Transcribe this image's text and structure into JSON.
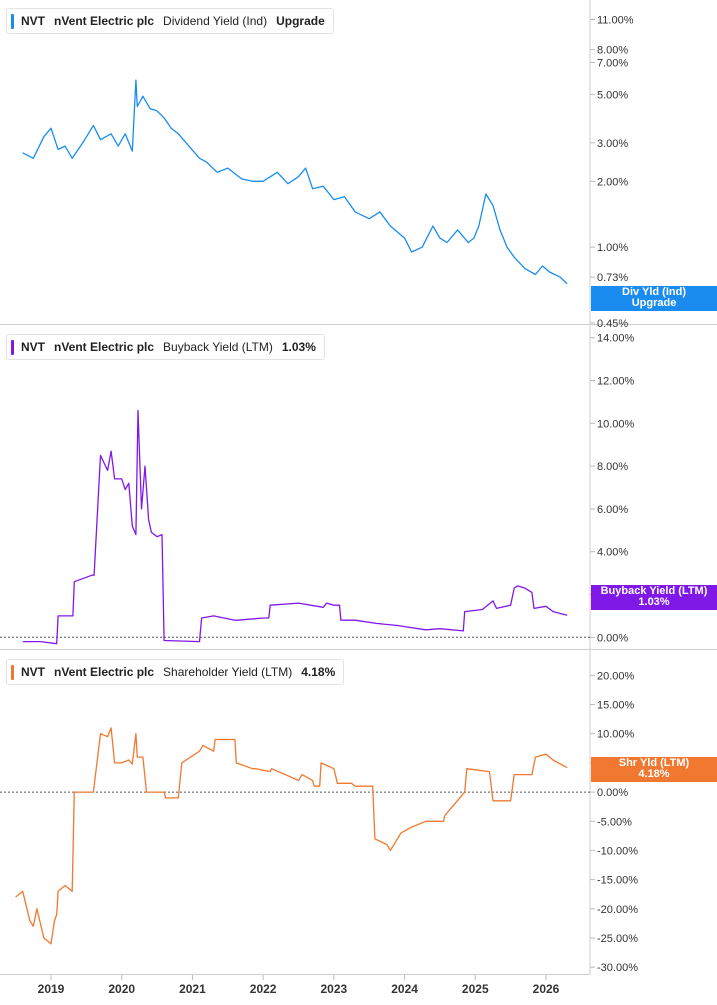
{
  "panels": [
    {
      "ticker": "NVT",
      "company": "nVent Electric plc",
      "metric": "Dividend Yield (Ind)",
      "legend_value": "Upgrade",
      "tag_line1": "Div Yld (Ind)",
      "tag_line2": "Upgrade",
      "color": "#1a8cf0"
    },
    {
      "ticker": "NVT",
      "company": "nVent Electric plc",
      "metric": "Buyback Yield (LTM)",
      "legend_value": "1.03%",
      "tag_line1": "Buyback Yield (LTM)",
      "tag_line2": "1.03%",
      "color": "#8018e8"
    },
    {
      "ticker": "NVT",
      "company": "nVent Electric plc",
      "metric": "Shareholder Yield (LTM)",
      "legend_value": "4.18%",
      "tag_line1": "Shr Yld (LTM)",
      "tag_line2": "4.18%",
      "color": "#f07830"
    }
  ],
  "chart_data": [
    {
      "type": "line",
      "title": "Dividend Yield (Ind)",
      "scale": "log",
      "ylim": [
        0.45,
        13.5
      ],
      "yticks": [
        "11.00%",
        "8.00%",
        "7.00%",
        "5.00%",
        "3.00%",
        "2.00%",
        "1.00%",
        "0.73%",
        "0.45%"
      ],
      "ytick_values": [
        11.0,
        8.0,
        7.0,
        5.0,
        3.0,
        2.0,
        1.0,
        0.73,
        0.45
      ],
      "series": [
        {
          "x": [
            2018.6,
            2018.75,
            2018.9,
            2019.0,
            2019.1,
            2019.2,
            2019.3,
            2019.45,
            2019.6,
            2019.7,
            2019.85,
            2019.95,
            2020.05,
            2020.15,
            2020.2,
            2020.22,
            2020.3,
            2020.4,
            2020.5,
            2020.6,
            2020.7,
            2020.8,
            2020.95,
            2021.1,
            2021.2,
            2021.35,
            2021.5,
            2021.7,
            2021.85,
            2022.0,
            2022.2,
            2022.35,
            2022.5,
            2022.6,
            2022.7,
            2022.85,
            2023.0,
            2023.15,
            2023.3,
            2023.5,
            2023.65,
            2023.8,
            2024.0,
            2024.1,
            2024.25,
            2024.4,
            2024.5,
            2024.6,
            2024.75,
            2024.9,
            2024.98,
            2025.05,
            2025.15,
            2025.25,
            2025.35,
            2025.45,
            2025.55,
            2025.7,
            2025.85,
            2025.95,
            2026.05,
            2026.2,
            2026.3
          ],
          "y": [
            2.7,
            2.55,
            3.2,
            3.5,
            2.8,
            2.9,
            2.55,
            3.0,
            3.6,
            3.1,
            3.3,
            2.9,
            3.3,
            2.75,
            5.8,
            4.4,
            4.9,
            4.3,
            4.2,
            3.9,
            3.5,
            3.3,
            2.9,
            2.55,
            2.45,
            2.2,
            2.3,
            2.05,
            2.0,
            2.0,
            2.2,
            1.95,
            2.1,
            2.3,
            1.85,
            1.9,
            1.65,
            1.7,
            1.45,
            1.35,
            1.45,
            1.25,
            1.1,
            0.95,
            1.0,
            1.25,
            1.1,
            1.05,
            1.2,
            1.05,
            1.1,
            1.25,
            1.75,
            1.55,
            1.2,
            1.0,
            0.9,
            0.8,
            0.75,
            0.82,
            0.77,
            0.73,
            0.68
          ]
        }
      ]
    },
    {
      "type": "line",
      "title": "Buyback Yield (LTM)",
      "ylim": [
        -0.5,
        14.5
      ],
      "yticks": [
        "14.00%",
        "12.00%",
        "10.00%",
        "8.00%",
        "6.00%",
        "4.00%",
        "2.00%",
        "0.00%"
      ],
      "ytick_values": [
        14,
        12,
        10,
        8,
        6,
        4,
        2,
        0
      ],
      "series": [
        {
          "x": [
            2018.6,
            2018.85,
            2019.08,
            2019.1,
            2019.31,
            2019.33,
            2019.58,
            2019.61,
            2019.7,
            2019.8,
            2019.85,
            2019.9,
            2020.0,
            2020.05,
            2020.1,
            2020.15,
            2020.2,
            2020.23,
            2020.28,
            2020.33,
            2020.38,
            2020.42,
            2020.5,
            2020.57,
            2020.6,
            2021.1,
            2021.13,
            2021.3,
            2021.6,
            2021.64,
            2022.0,
            2022.08,
            2022.1,
            2022.5,
            2022.85,
            2022.9,
            2023.0,
            2023.08,
            2023.1,
            2023.3,
            2023.6,
            2023.9,
            2024.0,
            2024.3,
            2024.5,
            2024.83,
            2024.85,
            2025.1,
            2025.25,
            2025.3,
            2025.5,
            2025.55,
            2025.6,
            2025.7,
            2025.8,
            2025.83,
            2026.0,
            2026.1,
            2026.3
          ],
          "y": [
            -0.2,
            -0.2,
            -0.3,
            1.0,
            1.0,
            2.6,
            2.9,
            2.9,
            8.5,
            7.8,
            8.7,
            7.4,
            7.4,
            6.9,
            7.2,
            5.2,
            4.8,
            10.6,
            6.0,
            8.0,
            5.5,
            4.9,
            4.7,
            4.8,
            -0.15,
            -0.2,
            0.9,
            1.0,
            0.8,
            0.8,
            0.9,
            0.9,
            1.5,
            1.6,
            1.4,
            1.6,
            1.5,
            1.5,
            0.8,
            0.8,
            0.65,
            0.55,
            0.5,
            0.35,
            0.4,
            0.3,
            1.2,
            1.3,
            1.7,
            1.35,
            1.5,
            2.3,
            2.4,
            2.3,
            2.1,
            1.35,
            1.45,
            1.2,
            1.03
          ]
        }
      ]
    },
    {
      "type": "line",
      "title": "Shareholder Yield (LTM)",
      "ylim": [
        -31,
        24
      ],
      "yticks": [
        "20.00%",
        "15.00%",
        "10.00%",
        "5.00%",
        "0.00%",
        "-5.00%",
        "-10.00%",
        "-15.00%",
        "-20.00%",
        "-25.00%",
        "-30.00%"
      ],
      "ytick_values": [
        20,
        15,
        10,
        5,
        0,
        -5,
        -10,
        -15,
        -20,
        -25,
        -30
      ],
      "series": [
        {
          "x": [
            2018.5,
            2018.6,
            2018.7,
            2018.75,
            2018.8,
            2018.9,
            2019.0,
            2019.05,
            2019.08,
            2019.1,
            2019.2,
            2019.3,
            2019.33,
            2019.5,
            2019.6,
            2019.7,
            2019.8,
            2019.85,
            2019.9,
            2020.0,
            2020.1,
            2020.15,
            2020.2,
            2020.22,
            2020.3,
            2020.35,
            2020.38,
            2020.6,
            2020.62,
            2020.8,
            2020.85,
            2021.1,
            2021.15,
            2021.3,
            2021.32,
            2021.6,
            2021.62,
            2021.85,
            2021.9,
            2022.1,
            2022.12,
            2022.5,
            2022.55,
            2022.7,
            2022.72,
            2022.8,
            2022.82,
            2023.0,
            2023.05,
            2023.25,
            2023.3,
            2023.55,
            2023.58,
            2023.75,
            2023.8,
            2023.95,
            2024.1,
            2024.3,
            2024.5,
            2024.55,
            2024.57,
            2024.85,
            2024.88,
            2025.2,
            2025.25,
            2025.5,
            2025.55,
            2025.8,
            2025.85,
            2026.0,
            2026.1,
            2026.3
          ],
          "y": [
            -18,
            -17,
            -22,
            -23,
            -20,
            -25,
            -26,
            -22,
            -21,
            -17,
            -16,
            -17,
            0,
            0,
            0,
            10,
            9.5,
            11,
            5,
            5,
            5.5,
            4.8,
            10,
            6,
            6,
            0,
            0,
            0,
            -1,
            -1,
            5,
            7,
            8,
            7,
            9,
            9,
            5,
            4,
            4,
            3.5,
            4,
            2,
            3,
            2,
            1,
            1,
            5,
            4,
            1.5,
            1.5,
            1,
            1,
            -8,
            -9,
            -10,
            -7,
            -6,
            -5,
            -5,
            -5,
            -4,
            0,
            4,
            3.5,
            -1.5,
            -1.5,
            3,
            3,
            6,
            6.5,
            5.5,
            4.18
          ]
        }
      ]
    }
  ],
  "x_axis": {
    "labels": [
      "2019",
      "2020",
      "2021",
      "2022",
      "2023",
      "2024",
      "2025",
      "2026"
    ],
    "values": [
      2019,
      2020,
      2021,
      2022,
      2023,
      2024,
      2025,
      2026
    ]
  }
}
